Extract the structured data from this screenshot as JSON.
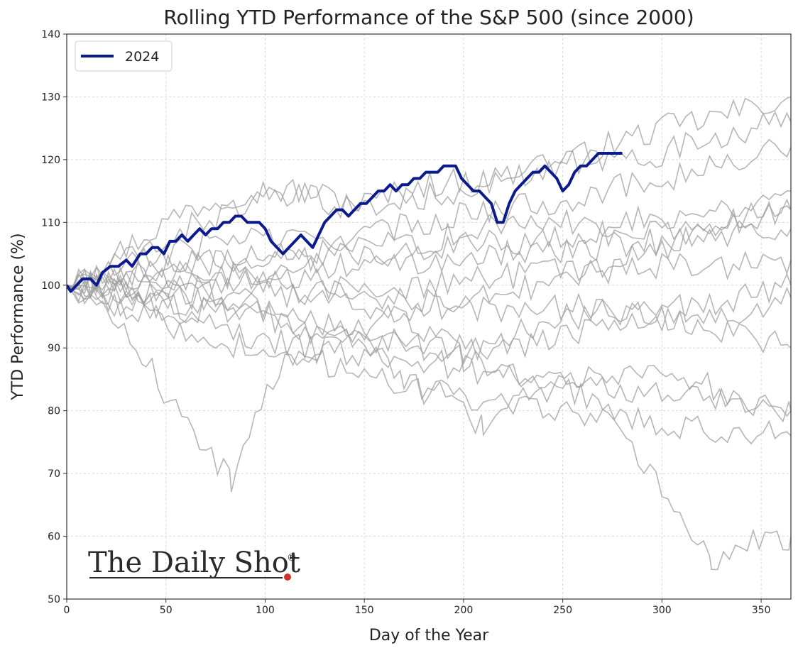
{
  "chart_data": {
    "type": "line",
    "title": "Rolling YTD Performance of the S&P 500 (since 2000)",
    "xlabel": "Day of the Year",
    "ylabel": "YTD Performance (%)",
    "xlim": [
      0,
      365
    ],
    "ylim": [
      50,
      140
    ],
    "xticks": [
      0,
      50,
      100,
      150,
      200,
      250,
      300,
      350
    ],
    "yticks": [
      50,
      60,
      70,
      80,
      90,
      100,
      110,
      120,
      130,
      140
    ],
    "grid": true,
    "legend": {
      "position": "top-left",
      "entries": [
        "2024"
      ]
    },
    "highlight_color": "#0b1a8c",
    "background_series_color": "#9e9e9e",
    "series": [
      {
        "name": "2024",
        "highlight": true,
        "points": [
          [
            0,
            100
          ],
          [
            2,
            99
          ],
          [
            5,
            100
          ],
          [
            8,
            101
          ],
          [
            12,
            101
          ],
          [
            15,
            100
          ],
          [
            18,
            102
          ],
          [
            22,
            103
          ],
          [
            26,
            103
          ],
          [
            30,
            104
          ],
          [
            33,
            103
          ],
          [
            37,
            105
          ],
          [
            40,
            105
          ],
          [
            43,
            106
          ],
          [
            46,
            106
          ],
          [
            49,
            105
          ],
          [
            52,
            107
          ],
          [
            55,
            107
          ],
          [
            58,
            108
          ],
          [
            61,
            107
          ],
          [
            64,
            108
          ],
          [
            67,
            109
          ],
          [
            70,
            108
          ],
          [
            73,
            109
          ],
          [
            76,
            109
          ],
          [
            79,
            110
          ],
          [
            82,
            110
          ],
          [
            85,
            111
          ],
          [
            88,
            111
          ],
          [
            91,
            110
          ],
          [
            94,
            110
          ],
          [
            97,
            110
          ],
          [
            100,
            109
          ],
          [
            103,
            107
          ],
          [
            106,
            106
          ],
          [
            109,
            105
          ],
          [
            112,
            106
          ],
          [
            115,
            107
          ],
          [
            118,
            108
          ],
          [
            121,
            107
          ],
          [
            124,
            106
          ],
          [
            127,
            108
          ],
          [
            130,
            110
          ],
          [
            133,
            111
          ],
          [
            136,
            112
          ],
          [
            139,
            112
          ],
          [
            142,
            111
          ],
          [
            145,
            112
          ],
          [
            148,
            113
          ],
          [
            151,
            113
          ],
          [
            154,
            114
          ],
          [
            157,
            115
          ],
          [
            160,
            115
          ],
          [
            163,
            116
          ],
          [
            166,
            115
          ],
          [
            169,
            116
          ],
          [
            172,
            116
          ],
          [
            175,
            117
          ],
          [
            178,
            117
          ],
          [
            181,
            118
          ],
          [
            184,
            118
          ],
          [
            187,
            118
          ],
          [
            190,
            119
          ],
          [
            193,
            119
          ],
          [
            196,
            119
          ],
          [
            199,
            117
          ],
          [
            202,
            116
          ],
          [
            205,
            115
          ],
          [
            208,
            115
          ],
          [
            211,
            114
          ],
          [
            214,
            113
          ],
          [
            217,
            110
          ],
          [
            220,
            110
          ],
          [
            223,
            113
          ],
          [
            226,
            115
          ],
          [
            229,
            116
          ],
          [
            232,
            117
          ],
          [
            235,
            118
          ],
          [
            238,
            118
          ],
          [
            241,
            119
          ],
          [
            244,
            118
          ],
          [
            247,
            117
          ],
          [
            250,
            115
          ],
          [
            253,
            116
          ],
          [
            256,
            118
          ],
          [
            259,
            119
          ],
          [
            262,
            119
          ],
          [
            265,
            120
          ],
          [
            268,
            121
          ],
          [
            271,
            121
          ],
          [
            274,
            121
          ],
          [
            277,
            121
          ],
          [
            280,
            121
          ]
        ]
      },
      {
        "name": "",
        "points": [
          [
            0,
            100
          ],
          [
            30,
            106
          ],
          [
            60,
            112
          ],
          [
            90,
            115
          ],
          [
            120,
            115
          ],
          [
            150,
            113
          ],
          [
            180,
            116
          ],
          [
            210,
            117
          ],
          [
            240,
            118
          ],
          [
            270,
            122
          ],
          [
            300,
            125
          ],
          [
            330,
            127
          ],
          [
            365,
            130
          ]
        ]
      },
      {
        "name": "",
        "points": [
          [
            0,
            100
          ],
          [
            30,
            104
          ],
          [
            60,
            109
          ],
          [
            90,
            113
          ],
          [
            120,
            114
          ],
          [
            150,
            112
          ],
          [
            180,
            114
          ],
          [
            210,
            116
          ],
          [
            240,
            119
          ],
          [
            270,
            120
          ],
          [
            300,
            121
          ],
          [
            330,
            124
          ],
          [
            365,
            126
          ]
        ]
      },
      {
        "name": "",
        "points": [
          [
            0,
            100
          ],
          [
            30,
            103
          ],
          [
            60,
            106
          ],
          [
            90,
            108
          ],
          [
            120,
            107
          ],
          [
            150,
            108
          ],
          [
            180,
            110
          ],
          [
            210,
            112
          ],
          [
            240,
            113
          ],
          [
            270,
            115
          ],
          [
            300,
            117
          ],
          [
            330,
            119
          ],
          [
            365,
            122
          ]
        ]
      },
      {
        "name": "",
        "points": [
          [
            0,
            100
          ],
          [
            30,
            102
          ],
          [
            60,
            104
          ],
          [
            90,
            104
          ],
          [
            120,
            105
          ],
          [
            150,
            106
          ],
          [
            180,
            107
          ],
          [
            210,
            109
          ],
          [
            240,
            110
          ],
          [
            270,
            110
          ],
          [
            300,
            111
          ],
          [
            330,
            112
          ],
          [
            365,
            115
          ]
        ]
      },
      {
        "name": "",
        "points": [
          [
            0,
            100
          ],
          [
            30,
            101
          ],
          [
            60,
            103
          ],
          [
            90,
            104
          ],
          [
            120,
            104
          ],
          [
            150,
            105
          ],
          [
            180,
            106
          ],
          [
            210,
            107
          ],
          [
            240,
            107
          ],
          [
            270,
            108
          ],
          [
            300,
            109
          ],
          [
            330,
            110
          ],
          [
            365,
            112
          ]
        ]
      },
      {
        "name": "",
        "points": [
          [
            0,
            100
          ],
          [
            30,
            100
          ],
          [
            60,
            101
          ],
          [
            90,
            102
          ],
          [
            120,
            103
          ],
          [
            150,
            103
          ],
          [
            180,
            104
          ],
          [
            210,
            105
          ],
          [
            240,
            105
          ],
          [
            270,
            106
          ],
          [
            300,
            107
          ],
          [
            330,
            108
          ],
          [
            365,
            109
          ]
        ]
      },
      {
        "name": "",
        "points": [
          [
            0,
            100
          ],
          [
            30,
            99
          ],
          [
            60,
            98
          ],
          [
            90,
            98
          ],
          [
            120,
            99
          ],
          [
            150,
            98
          ],
          [
            180,
            97
          ],
          [
            210,
            96
          ],
          [
            240,
            97
          ],
          [
            270,
            96
          ],
          [
            300,
            95
          ],
          [
            330,
            93
          ],
          [
            365,
            90
          ]
        ]
      },
      {
        "name": "",
        "points": [
          [
            0,
            100
          ],
          [
            30,
            98
          ],
          [
            60,
            97
          ],
          [
            90,
            95
          ],
          [
            120,
            93
          ],
          [
            150,
            91
          ],
          [
            180,
            90
          ],
          [
            210,
            90
          ],
          [
            240,
            91
          ],
          [
            270,
            93
          ],
          [
            300,
            95
          ],
          [
            330,
            97
          ],
          [
            365,
            100
          ]
        ]
      },
      {
        "name": "",
        "points": [
          [
            0,
            100
          ],
          [
            30,
            97
          ],
          [
            60,
            94
          ],
          [
            90,
            92
          ],
          [
            120,
            90
          ],
          [
            150,
            89
          ],
          [
            180,
            88
          ],
          [
            210,
            86
          ],
          [
            240,
            85
          ],
          [
            270,
            84
          ],
          [
            300,
            83
          ],
          [
            330,
            82
          ],
          [
            365,
            80
          ]
        ]
      },
      {
        "name": "",
        "points": [
          [
            0,
            100
          ],
          [
            30,
            96
          ],
          [
            60,
            93
          ],
          [
            90,
            90
          ],
          [
            120,
            88
          ],
          [
            150,
            86
          ],
          [
            180,
            83
          ],
          [
            210,
            82
          ],
          [
            240,
            80
          ],
          [
            270,
            79
          ],
          [
            300,
            78
          ],
          [
            330,
            77
          ],
          [
            365,
            76
          ]
        ]
      },
      {
        "name": "",
        "points": [
          [
            0,
            100
          ],
          [
            20,
            95
          ],
          [
            40,
            88
          ],
          [
            55,
            80
          ],
          [
            70,
            74
          ],
          [
            83,
            69
          ],
          [
            95,
            80
          ],
          [
            110,
            88
          ],
          [
            130,
            90
          ],
          [
            150,
            93
          ],
          [
            170,
            96
          ],
          [
            190,
            98
          ],
          [
            210,
            99
          ],
          [
            240,
            100
          ],
          [
            270,
            103
          ],
          [
            300,
            106
          ],
          [
            330,
            109
          ],
          [
            365,
            112
          ]
        ]
      },
      {
        "name": "",
        "points": [
          [
            0,
            100
          ],
          [
            30,
            98
          ],
          [
            60,
            96
          ],
          [
            90,
            96
          ],
          [
            120,
            93
          ],
          [
            150,
            90
          ],
          [
            170,
            85
          ],
          [
            200,
            81
          ],
          [
            210,
            77
          ],
          [
            230,
            82
          ],
          [
            260,
            85
          ],
          [
            290,
            87
          ],
          [
            320,
            85
          ],
          [
            340,
            81
          ],
          [
            365,
            80
          ]
        ]
      },
      {
        "name": "",
        "points": [
          [
            0,
            100
          ],
          [
            30,
            102
          ],
          [
            60,
            100
          ],
          [
            90,
            97
          ],
          [
            120,
            95
          ],
          [
            150,
            92
          ],
          [
            180,
            91
          ],
          [
            200,
            88
          ],
          [
            220,
            86
          ],
          [
            250,
            84
          ],
          [
            270,
            81
          ],
          [
            285,
            73
          ],
          [
            300,
            68
          ],
          [
            315,
            61
          ],
          [
            325,
            55
          ],
          [
            340,
            58
          ],
          [
            355,
            60
          ],
          [
            365,
            60
          ]
        ]
      },
      {
        "name": "",
        "points": [
          [
            0,
            100
          ],
          [
            30,
            99
          ],
          [
            60,
            99
          ],
          [
            90,
            101
          ],
          [
            120,
            101
          ],
          [
            150,
            100
          ],
          [
            180,
            100
          ],
          [
            210,
            101
          ],
          [
            240,
            102
          ],
          [
            270,
            102
          ],
          [
            300,
            103
          ],
          [
            330,
            103
          ],
          [
            365,
            104
          ]
        ]
      },
      {
        "name": "",
        "points": [
          [
            0,
            100
          ],
          [
            30,
            101
          ],
          [
            60,
            102
          ],
          [
            90,
            101
          ],
          [
            120,
            99
          ],
          [
            150,
            96
          ],
          [
            180,
            93
          ],
          [
            200,
            89
          ],
          [
            220,
            91
          ],
          [
            240,
            94
          ],
          [
            270,
            96
          ],
          [
            300,
            97
          ],
          [
            330,
            95
          ],
          [
            365,
            98
          ]
        ]
      }
    ],
    "logo": {
      "text": "The Daily Shot",
      "mark": "®"
    }
  }
}
